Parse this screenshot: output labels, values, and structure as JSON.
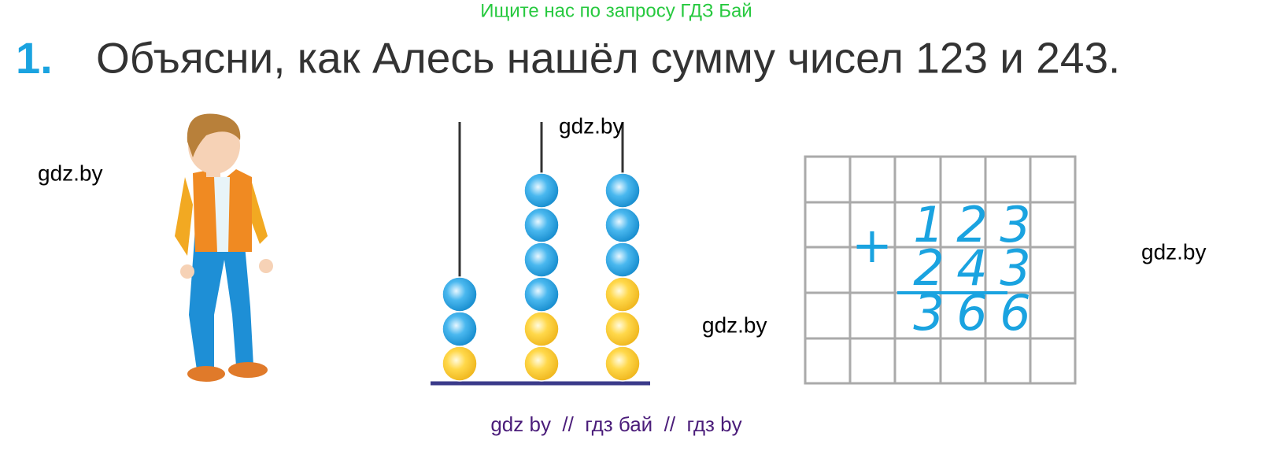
{
  "header": {
    "banner": "Ищите нас по запросу ГДЗ Бай"
  },
  "task": {
    "number": "1.",
    "text": "Объясни, как Алесь нашёл сумму чисел 123 и 243."
  },
  "addition": {
    "sign": "+",
    "rows": [
      [
        "1",
        "2",
        "3"
      ],
      [
        "2",
        "4",
        "3"
      ],
      [
        "3",
        "6",
        "6"
      ]
    ]
  },
  "watermarks": [
    "gdz.by",
    "gdz.by",
    "gdz.by",
    "gdz.by"
  ],
  "footer": "gdz by  //  гдз бай  //  гдз by"
}
